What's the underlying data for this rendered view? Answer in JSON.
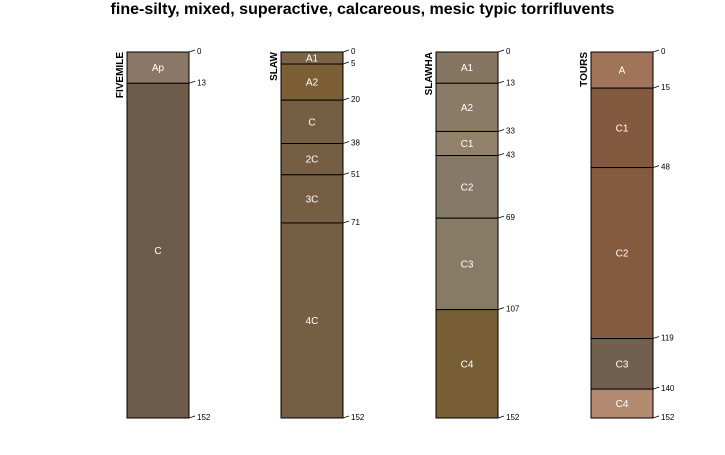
{
  "chart_data": {
    "type": "soil-profile",
    "title": "fine-silty, mixed, superactive, calcareous, mesic typic torrifluvents",
    "depth_units": "cm",
    "max_depth": 152,
    "profiles": [
      {
        "name": "FIVEMILE",
        "horizons": [
          {
            "name": "Ap",
            "top": 0,
            "bottom": 13,
            "color": "#8b7766"
          },
          {
            "name": "C",
            "top": 13,
            "bottom": 152,
            "color": "#6e5c4a"
          }
        ]
      },
      {
        "name": "SLAW",
        "horizons": [
          {
            "name": "A1",
            "top": 0,
            "bottom": 5,
            "color": "#7a6346"
          },
          {
            "name": "A2",
            "top": 5,
            "bottom": 20,
            "color": "#7d5f36"
          },
          {
            "name": "C",
            "top": 20,
            "bottom": 38,
            "color": "#765e44"
          },
          {
            "name": "2C",
            "top": 38,
            "bottom": 51,
            "color": "#765e44"
          },
          {
            "name": "3C",
            "top": 51,
            "bottom": 71,
            "color": "#765e44"
          },
          {
            "name": "4C",
            "top": 71,
            "bottom": 152,
            "color": "#765e44"
          }
        ]
      },
      {
        "name": "SLAWHA",
        "horizons": [
          {
            "name": "A1",
            "top": 0,
            "bottom": 13,
            "color": "#857561"
          },
          {
            "name": "A2",
            "top": 13,
            "bottom": 33,
            "color": "#8b7a66"
          },
          {
            "name": "C1",
            "top": 33,
            "bottom": 43,
            "color": "#91806a"
          },
          {
            "name": "C2",
            "top": 43,
            "bottom": 69,
            "color": "#857a67"
          },
          {
            "name": "C3",
            "top": 69,
            "bottom": 107,
            "color": "#887b66"
          },
          {
            "name": "C4",
            "top": 107,
            "bottom": 152,
            "color": "#775e34"
          }
        ]
      },
      {
        "name": "TOURS",
        "horizons": [
          {
            "name": "A",
            "top": 0,
            "bottom": 15,
            "color": "#a07458"
          },
          {
            "name": "C1",
            "top": 15,
            "bottom": 48,
            "color": "#835a40"
          },
          {
            "name": "C2",
            "top": 48,
            "bottom": 119,
            "color": "#855b40"
          },
          {
            "name": "C3",
            "top": 119,
            "bottom": 140,
            "color": "#72604f"
          },
          {
            "name": "C4",
            "top": 140,
            "bottom": 152,
            "color": "#b28a6f"
          }
        ]
      }
    ]
  }
}
